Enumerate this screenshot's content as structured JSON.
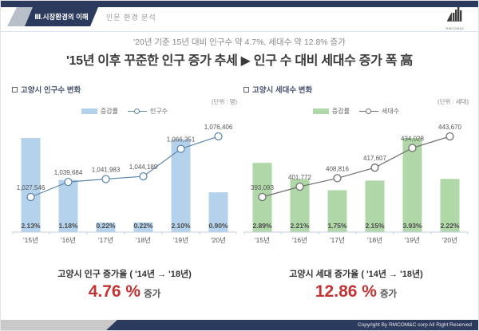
{
  "header": {
    "section_tab": "Ⅲ.시장환경의 이해",
    "section_sub": "인문 환경 분석",
    "logo_text": "RMCOM&C"
  },
  "title": {
    "subtitle": "'20년 기준 15년 대비 인구수 약 4.7%, 세대수 약 12.8% 증가",
    "main": "'15년 이후 꾸준한 인구 증가 추세 ▶ 인구 수 대비 세대수 증가 폭 高"
  },
  "colors": {
    "navy": "#2c3a5e",
    "population_bar": "#b4d2ec",
    "population_line": "#5e87ae",
    "household_bar": "#afd7a7",
    "household_line": "#6f6f6f",
    "accent_red": "#c53434",
    "axis": "#c3d0e2"
  },
  "chart_data": [
    {
      "type": "bar",
      "title": "고양시 인구수 변화",
      "unit": "(단위 : 명)",
      "categories": [
        "'15년",
        "'16년",
        "'17년",
        "'18년",
        "'19년",
        "'20년"
      ],
      "series": [
        {
          "name": "증감률",
          "type": "bar",
          "values": [
            2.13,
            1.18,
            0.22,
            0.22,
            2.1,
            0.9
          ],
          "labels": [
            "2.13%",
            "1.18%",
            "0.22%",
            "0.22%",
            "2.10%",
            "0.90%"
          ],
          "color": "#b4d2ec"
        },
        {
          "name": "인구수",
          "type": "line",
          "values": [
            1027546,
            1039684,
            1041983,
            1044189,
            1066351,
            1076406
          ],
          "labels": [
            "1,027,546",
            "1,039,684",
            "1,041,983",
            "1,044,189",
            "1,066,351",
            "1,076,406"
          ],
          "color": "#5e87ae"
        }
      ],
      "legend_position": "top",
      "grid": false,
      "summary": {
        "label": "고양시 인구 증가율 ( '14년 → '18년)",
        "value": "4.76 %",
        "suffix": "증가"
      }
    },
    {
      "type": "bar",
      "title": "고양시 세대수 변화",
      "unit": "(단위 : 세대)",
      "categories": [
        "'15년",
        "'16년",
        "'17년",
        "'18년",
        "'19년",
        "'20년"
      ],
      "series": [
        {
          "name": "증감률",
          "type": "bar",
          "values": [
            2.89,
            2.21,
            1.75,
            2.15,
            3.93,
            2.22
          ],
          "labels": [
            "2.89%",
            "2.21%",
            "1.75%",
            "2.15%",
            "3.93%",
            "2.22%"
          ],
          "color": "#afd7a7"
        },
        {
          "name": "세대수",
          "type": "line",
          "values": [
            393093,
            401772,
            408816,
            417607,
            434028,
            443670
          ],
          "labels": [
            "393,093",
            "401,772",
            "408,816",
            "417,607",
            "434,028",
            "443,670"
          ],
          "color": "#6f6f6f"
        }
      ],
      "legend_position": "top",
      "grid": false,
      "summary": {
        "label": "고양시 세대 증가율 ( '14년 → '18년)",
        "value": "12.86 %",
        "suffix": "증가"
      }
    }
  ],
  "footer": {
    "copyright": "Copyright By RMCOM&C corp All Right Reserved"
  }
}
